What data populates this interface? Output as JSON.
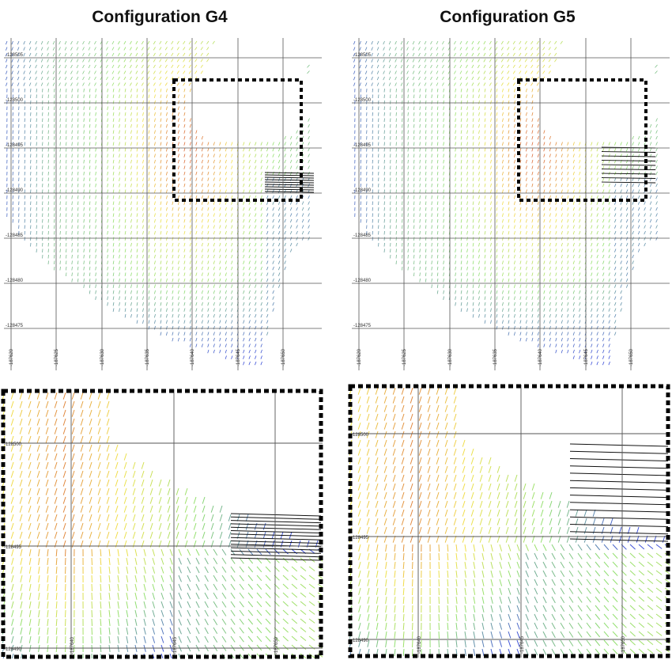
{
  "panels": [
    {
      "id": "g4",
      "title": "Configuration G4",
      "y_ticks": [
        "-128505",
        "-128500",
        "-128495",
        "-128490",
        "-128485",
        "-128480",
        "-128475"
      ],
      "x_ticks": [
        "-187620",
        "-187625",
        "-187630",
        "-187635",
        "-187640",
        "-187645",
        "-187650"
      ]
    },
    {
      "id": "g5",
      "title": "Configuration G5",
      "y_ticks": [
        "-128505",
        "-128500",
        "-128495",
        "-128490",
        "-128485",
        "-128480",
        "-128475"
      ],
      "x_ticks": [
        "-187620",
        "-187625",
        "-187630",
        "-187635",
        "-187640",
        "-187645",
        "-187650"
      ]
    }
  ],
  "zooms": [
    {
      "id": "g4-zoom",
      "y_ticks": [
        "-128500",
        "-128495",
        "-128490"
      ],
      "x_ticks": [
        "-187640",
        "-187645",
        "-187650"
      ]
    },
    {
      "id": "g5-zoom",
      "y_ticks": [
        "-128500",
        "-128495",
        "-128490"
      ],
      "x_ticks": [
        "-187640",
        "-187645",
        "-187650"
      ]
    }
  ],
  "colors": {
    "velocity_high": "#d9603a",
    "velocity_mid": "#f2e14a",
    "velocity_low": "#90e070",
    "velocity_min": "#3f52d8",
    "jet": "#111111",
    "grid": "#555555",
    "zoom_box": "#000000"
  }
}
